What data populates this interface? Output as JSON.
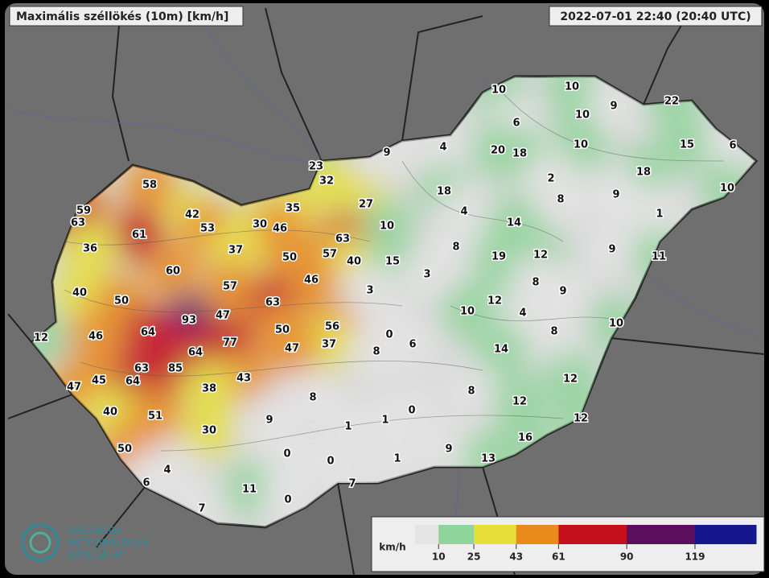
{
  "header": {
    "title": "Maximális széllökés (10m) [km/h]",
    "timestamp": "2022-07-01 22:40 (20:40 UTC)"
  },
  "stations": [
    10,
    10,
    10,
    9,
    22,
    6,
    20,
    18,
    10,
    15,
    6,
    9,
    4,
    18,
    10,
    23,
    32,
    2,
    18,
    9,
    27,
    8,
    58,
    59,
    63,
    42,
    35,
    4,
    1,
    30,
    46,
    53,
    10,
    14,
    61,
    63,
    8,
    9,
    36,
    37,
    57,
    50,
    40,
    15,
    19,
    12,
    11,
    60,
    3,
    46,
    57,
    8,
    3,
    9,
    40,
    50,
    63,
    12,
    10,
    47,
    4,
    93,
    10,
    56,
    12,
    46,
    64,
    50,
    8,
    0,
    77,
    37,
    47,
    14,
    64,
    6,
    8,
    63,
    85,
    45,
    64,
    43,
    12,
    47,
    38,
    8,
    8,
    12,
    40,
    51,
    9,
    1,
    0,
    1,
    12,
    30,
    16,
    50,
    9,
    0,
    1,
    13,
    4,
    0,
    6,
    7,
    11,
    0,
    7
  ],
  "legend": {
    "unit": "km/h",
    "lim": [
      0,
      145
    ],
    "ticks": [
      10,
      25,
      43,
      61,
      90,
      119
    ],
    "colors": [
      "#e4e4e4",
      "#8fd49a",
      "#e6df3a",
      "#e98a1c",
      "#c4101a",
      "#5a0f5e",
      "#16168f",
      "#e8e8f4"
    ]
  },
  "logo": {
    "line1": "ORSZÁGOS",
    "line2": "METEOROLÓGIAI",
    "line3": "SZOLGÁLAT"
  }
}
